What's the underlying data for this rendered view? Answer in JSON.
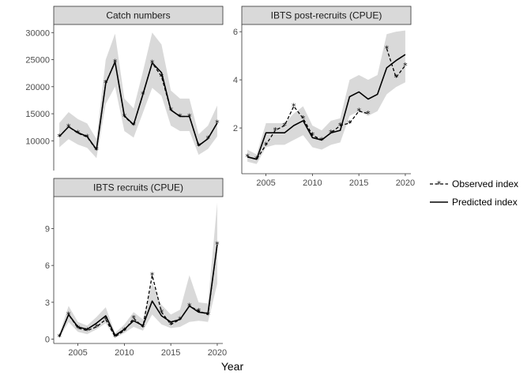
{
  "chart_data": [
    {
      "type": "line",
      "title": "Catch numbers",
      "xlim": [
        2002.4,
        2020.6
      ],
      "ylim": [
        4500,
        31500
      ],
      "yticks": [
        10000,
        15000,
        20000,
        25000,
        30000
      ],
      "ytick_labels": [
        "10000",
        "15000",
        "20000",
        "25000",
        "30000"
      ],
      "xticks": [],
      "xtick_labels": [],
      "grid": false,
      "series": [
        {
          "name": "Observed index",
          "style": "dashed-asterisk",
          "x": [
            2003,
            2004,
            2005,
            2006,
            2007,
            2008,
            2009,
            2010,
            2011,
            2012,
            2013,
            2014,
            2015,
            2016,
            2017,
            2018,
            2019,
            2020
          ],
          "values": [
            10800,
            12600,
            11400,
            10700,
            8300,
            20700,
            24600,
            14500,
            12900,
            18600,
            24400,
            21900,
            15700,
            14500,
            14500,
            9100,
            10400,
            13300
          ]
        },
        {
          "name": "Predicted index",
          "style": "solid",
          "x": [
            2003,
            2004,
            2005,
            2006,
            2007,
            2008,
            2009,
            2010,
            2011,
            2012,
            2013,
            2014,
            2015,
            2016,
            2017,
            2018,
            2019,
            2020
          ],
          "values": [
            10800,
            12600,
            11500,
            10800,
            8400,
            20600,
            24600,
            14600,
            13000,
            18600,
            24400,
            22600,
            15700,
            14500,
            14500,
            9100,
            10400,
            13300
          ]
        }
      ],
      "band": {
        "x": [
          2003,
          2004,
          2005,
          2006,
          2007,
          2008,
          2009,
          2010,
          2011,
          2012,
          2013,
          2014,
          2015,
          2016,
          2017,
          2018,
          2019,
          2020
        ],
        "lower": [
          8800,
          10300,
          9300,
          8700,
          6800,
          16800,
          20000,
          11800,
          10600,
          15200,
          19800,
          18300,
          12800,
          11800,
          11800,
          7400,
          8500,
          10800
        ],
        "upper": [
          13300,
          15300,
          14000,
          13200,
          10300,
          25000,
          29800,
          17800,
          16000,
          22800,
          30000,
          27800,
          19300,
          17800,
          17800,
          11200,
          12800,
          16500
        ]
      }
    },
    {
      "type": "line",
      "title": "IBTS post-recruits (CPUE)",
      "xlim": [
        2002.4,
        2020.6
      ],
      "ylim": [
        0.1,
        6.3
      ],
      "yticks": [
        2,
        4,
        6
      ],
      "ytick_labels": [
        "2",
        "4",
        "6"
      ],
      "xticks": [
        2005,
        2010,
        2015,
        2020
      ],
      "xtick_labels": [
        "2005",
        "2010",
        "2015",
        "2020"
      ],
      "grid": false,
      "series": [
        {
          "name": "Observed index",
          "style": "dashed-asterisk",
          "x": [
            2003,
            2004,
            2005,
            2006,
            2007,
            2008,
            2009,
            2010,
            2011,
            2012,
            2013,
            2014,
            2015,
            2016,
            null,
            2018,
            2019,
            2020
          ],
          "values": [
            0.8,
            0.7,
            1.3,
            1.9,
            2.1,
            2.9,
            2.4,
            1.7,
            1.5,
            1.8,
            2.1,
            2.2,
            2.7,
            2.6,
            null,
            5.3,
            4.1,
            4.6
          ]
        },
        {
          "name": "Predicted index",
          "style": "solid",
          "x": [
            2003,
            2004,
            2005,
            2006,
            2007,
            2008,
            2009,
            2010,
            2011,
            2012,
            2013,
            2014,
            2015,
            2016,
            2017,
            2018,
            2019,
            2020
          ],
          "values": [
            0.8,
            0.7,
            1.8,
            1.8,
            1.8,
            2.1,
            2.3,
            1.6,
            1.5,
            1.8,
            1.9,
            3.3,
            3.5,
            3.2,
            3.4,
            4.5,
            4.8,
            5.05
          ]
        }
      ],
      "band": {
        "x": [
          2003,
          2004,
          2005,
          2006,
          2007,
          2008,
          2009,
          2010,
          2011,
          2012,
          2013,
          2014,
          2015,
          2016,
          2017,
          2018,
          2019,
          2020
        ],
        "lower": [
          0.6,
          0.5,
          1.2,
          1.3,
          1.3,
          1.5,
          1.7,
          1.2,
          1.1,
          1.3,
          1.4,
          2.5,
          2.7,
          2.5,
          2.7,
          3.4,
          3.7,
          3.9
        ],
        "upper": [
          1.1,
          0.9,
          2.2,
          2.2,
          2.2,
          2.6,
          2.9,
          2.1,
          1.9,
          2.3,
          2.4,
          4.0,
          4.2,
          4.0,
          4.2,
          5.9,
          6.0,
          6.05
        ]
      }
    },
    {
      "type": "line",
      "title": "IBTS recruits (CPUE)",
      "xlim": [
        2002.4,
        2020.6
      ],
      "ylim": [
        -0.35,
        11.6
      ],
      "yticks": [
        0,
        3,
        6,
        9
      ],
      "ytick_labels": [
        "0",
        "3",
        "6",
        "9"
      ],
      "xticks": [
        2005,
        2010,
        2015,
        2020
      ],
      "xtick_labels": [
        "2005",
        "2010",
        "2015",
        "2020"
      ],
      "xlabel": "Year",
      "grid": false,
      "series": [
        {
          "name": "Observed index",
          "style": "dashed-asterisk",
          "x": [
            2003,
            2004,
            2005,
            2006,
            2007,
            2008,
            2009,
            2010,
            2011,
            2012,
            2013,
            2014,
            2015,
            2016,
            2017,
            2018,
            2019,
            2020
          ],
          "values": [
            0.2,
            2.0,
            0.9,
            0.7,
            1.0,
            1.6,
            0.2,
            0.7,
            1.7,
            1.0,
            5.2,
            2.2,
            1.2,
            1.6,
            2.7,
            2.3,
            2.0,
            7.7
          ]
        },
        {
          "name": "Predicted index",
          "style": "solid",
          "x": [
            2003,
            2004,
            2005,
            2006,
            2007,
            2008,
            2009,
            2010,
            2011,
            2012,
            2013,
            2014,
            2015,
            2016,
            2017,
            2018,
            2019,
            2020
          ],
          "values": [
            0.2,
            2.0,
            1.0,
            0.8,
            1.3,
            1.9,
            0.3,
            0.8,
            1.5,
            1.1,
            3.1,
            1.9,
            1.4,
            1.6,
            2.7,
            2.2,
            2.1,
            7.7
          ]
        }
      ],
      "band": {
        "x": [
          2003,
          2004,
          2005,
          2006,
          2007,
          2008,
          2009,
          2010,
          2011,
          2012,
          2013,
          2014,
          2015,
          2016,
          2017,
          2018,
          2019,
          2020
        ],
        "lower": [
          0.1,
          1.4,
          0.6,
          0.4,
          0.8,
          1.3,
          0.1,
          0.5,
          1.0,
          0.7,
          2.0,
          1.2,
          0.9,
          1.0,
          1.4,
          1.5,
          1.4,
          4.5
        ],
        "upper": [
          0.4,
          2.7,
          1.4,
          1.1,
          1.8,
          2.6,
          0.5,
          1.2,
          2.2,
          1.6,
          4.6,
          2.8,
          2.0,
          2.4,
          5.2,
          3.0,
          2.9,
          11.1
        ]
      }
    }
  ],
  "legend": {
    "placement": "right",
    "items": [
      {
        "label": "Observed index",
        "style": "dashed-asterisk"
      },
      {
        "label": "Predicted index",
        "style": "solid"
      }
    ]
  },
  "colors": {
    "strip_fill": "#d9d9d9",
    "strip_border": "#333333",
    "band": "#d9d9d9",
    "line": "#000000",
    "axis": "#333333"
  }
}
